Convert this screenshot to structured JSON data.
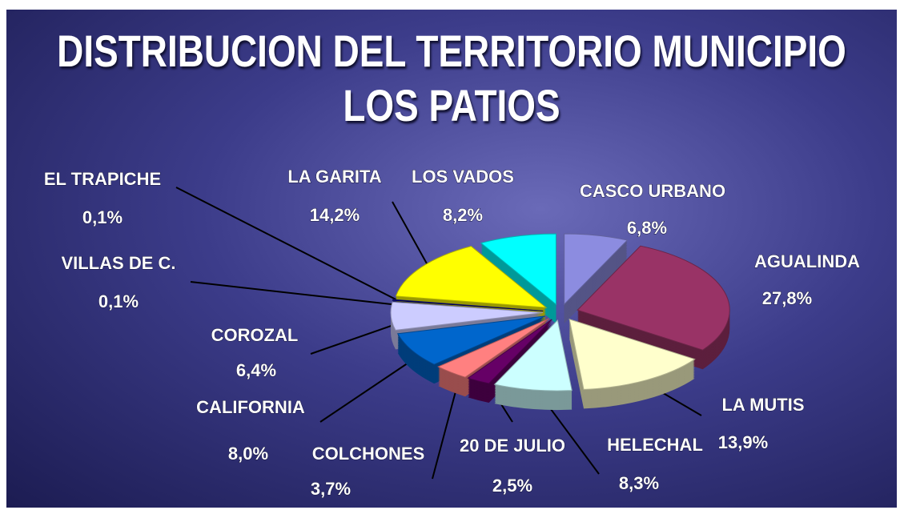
{
  "chart_data": {
    "type": "pie",
    "title": "DISTRIBUCION DEL TERRITORIO MUNICIPIO LOS PATIOS",
    "categories": [
      "CASCO URBANO",
      "AGUALINDA",
      "LA MUTIS",
      "HELECHAL",
      "20 DE JULIO",
      "COLCHONES",
      "CALIFORNIA",
      "COROZAL",
      "VILLAS DE C.",
      "EL TRAPICHE",
      "LA GARITA",
      "LOS VADOS"
    ],
    "values": [
      6.8,
      27.8,
      13.9,
      8.3,
      2.5,
      3.7,
      8.0,
      6.4,
      0.1,
      0.1,
      14.2,
      8.2
    ],
    "value_labels": [
      "6,8%",
      "27,8%",
      "13,9%",
      "8,3%",
      "2,5%",
      "3,7%",
      "8,0%",
      "6,4%",
      "0,1%",
      "0,1%",
      "14,2%",
      "8,2%"
    ],
    "colors": [
      "#8c8ce0",
      "#993366",
      "#ffffcc",
      "#ccffff",
      "#660066",
      "#ff8080",
      "#0066cc",
      "#ccccff",
      "#000080",
      "#333399",
      "#ffff00",
      "#00ffff"
    ]
  }
}
